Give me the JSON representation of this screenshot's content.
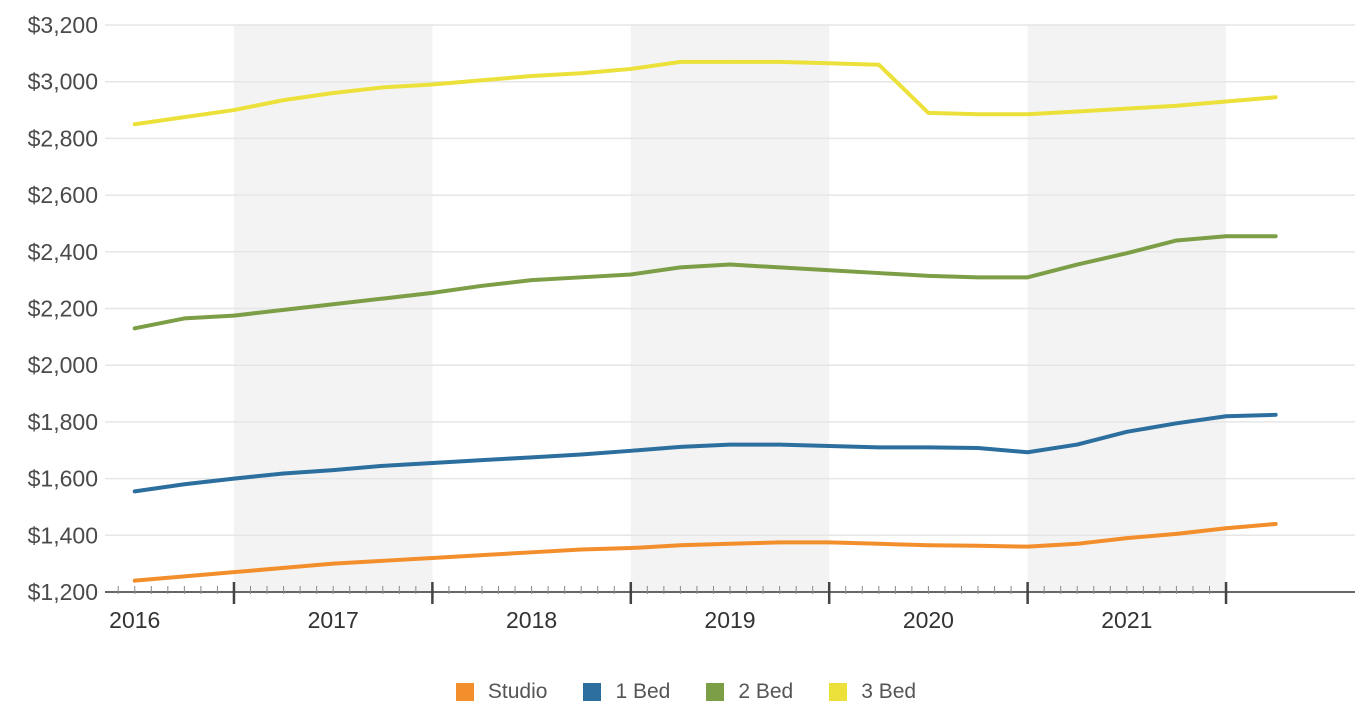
{
  "chart_data": {
    "type": "line",
    "title": "",
    "xlabel": "",
    "ylabel": "",
    "ylim": [
      1200,
      3200
    ],
    "yticks": [
      "$1,200",
      "$1,400",
      "$1,600",
      "$1,800",
      "$2,000",
      "$2,200",
      "$2,400",
      "$2,600",
      "$2,800",
      "$3,000",
      "$3,200"
    ],
    "xticks": [
      "2016",
      "2017",
      "2018",
      "2019",
      "2020",
      "2021"
    ],
    "grid": true,
    "legend_position": "bottom",
    "x": [
      2016.0,
      2016.25,
      2016.5,
      2016.75,
      2017.0,
      2017.25,
      2017.5,
      2017.75,
      2018.0,
      2018.25,
      2018.5,
      2018.75,
      2019.0,
      2019.25,
      2019.5,
      2019.75,
      2020.0,
      2020.25,
      2020.5,
      2020.75,
      2021.0,
      2021.25,
      2021.5,
      2021.75
    ],
    "series": [
      {
        "name": "Studio",
        "color": "#f28e2b",
        "values": [
          1240,
          1255,
          1270,
          1285,
          1300,
          1310,
          1320,
          1330,
          1340,
          1350,
          1355,
          1365,
          1370,
          1375,
          1375,
          1370,
          1365,
          1363,
          1360,
          1370,
          1390,
          1405,
          1425,
          1440
        ]
      },
      {
        "name": "1 Bed",
        "color": "#2c6f9e",
        "values": [
          1555,
          1580,
          1600,
          1618,
          1630,
          1645,
          1655,
          1665,
          1675,
          1685,
          1698,
          1712,
          1720,
          1720,
          1715,
          1710,
          1710,
          1708,
          1693,
          1720,
          1765,
          1795,
          1820,
          1825
        ]
      },
      {
        "name": "2 Bed",
        "color": "#7c9e46",
        "values": [
          2130,
          2165,
          2175,
          2195,
          2215,
          2235,
          2255,
          2280,
          2300,
          2310,
          2320,
          2345,
          2355,
          2345,
          2335,
          2325,
          2315,
          2310,
          2310,
          2355,
          2395,
          2440,
          2455,
          2455
        ]
      },
      {
        "name": "3 Bed",
        "color": "#ece13b",
        "values": [
          2850,
          2875,
          2900,
          2935,
          2960,
          2980,
          2990,
          3005,
          3020,
          3030,
          3045,
          3070,
          3070,
          3070,
          3065,
          3060,
          2890,
          2885,
          2885,
          2895,
          2905,
          2915,
          2930,
          2945
        ]
      }
    ]
  }
}
